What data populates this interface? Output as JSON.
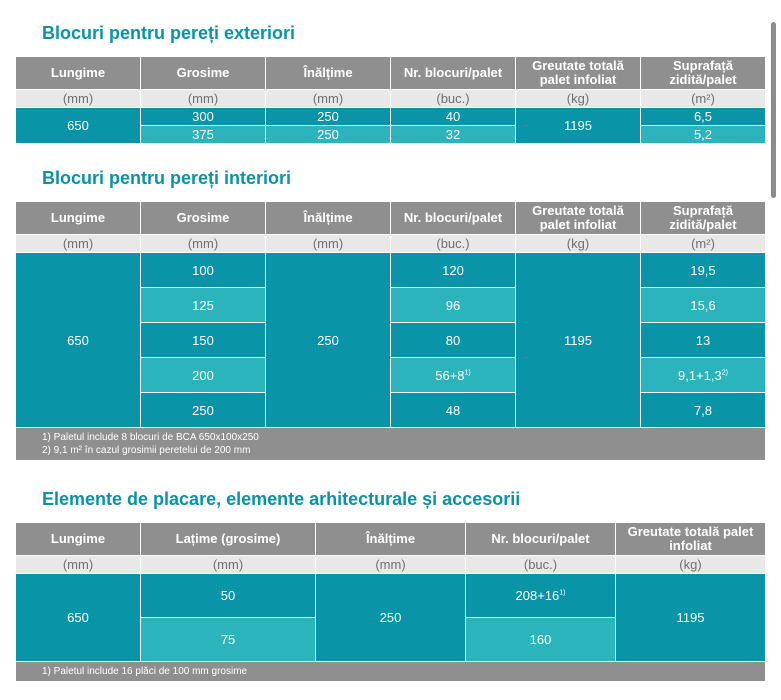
{
  "sections": [
    {
      "title": "Blocuri pentru pereți exteriori",
      "columns": [
        {
          "header": "Lungime",
          "unit": "(mm)",
          "values": [
            "650"
          ]
        },
        {
          "header": "Grosime",
          "unit": "(mm)",
          "values": [
            "300",
            "375"
          ]
        },
        {
          "header": "Înălțime",
          "unit": "(mm)",
          "values": [
            "250",
            "250"
          ]
        },
        {
          "header": "Nr. blocuri/palet",
          "unit": "(buc.)",
          "values": [
            "40",
            "32"
          ]
        },
        {
          "header": "Greutate totală palet infoliat",
          "unit": "(kg)",
          "values": [
            "1195"
          ]
        },
        {
          "header": "Suprafață zidită/palet",
          "unit": "(m²)",
          "values": [
            "6,5",
            "5,2"
          ]
        }
      ]
    },
    {
      "title": "Blocuri pentru pereți interiori",
      "columns": [
        {
          "header": "Lungime",
          "unit": "(mm)",
          "values": [
            "650"
          ]
        },
        {
          "header": "Grosime",
          "unit": "(mm)",
          "values": [
            "100",
            "125",
            "150",
            "200",
            "250"
          ]
        },
        {
          "header": "Înălțime",
          "unit": "(mm)",
          "values": [
            "250"
          ]
        },
        {
          "header": "Nr. blocuri/palet",
          "unit": "(buc.)",
          "values": [
            "120",
            "96",
            "80",
            {
              "text": "56+8",
              "sup": "1)"
            },
            "48"
          ]
        },
        {
          "header": "Greutate totală palet infoliat",
          "unit": "(kg)",
          "values": [
            "1195"
          ]
        },
        {
          "header": "Suprafață zidită/palet",
          "unit": "(m²)",
          "values": [
            "19,5",
            "15,6",
            "13",
            {
              "text": "9,1+1,3",
              "sup": "2)"
            },
            "7,8"
          ]
        }
      ],
      "footnotes": [
        "1) Paletul include 8 blocuri de BCA 650x100x250",
        "2) 9,1 m² în cazul grosimii peretelui de 200 mm"
      ]
    },
    {
      "title": "Elemente de placare, elemente arhitecturale și accesorii",
      "columns": [
        {
          "header": "Lungime",
          "unit": "(mm)",
          "values": [
            "650"
          ]
        },
        {
          "header": "Lațime (grosime)",
          "unit": "(mm)",
          "values": [
            "50",
            "75"
          ]
        },
        {
          "header": "Înălțime",
          "unit": "(mm)",
          "values": [
            "250"
          ]
        },
        {
          "header": "Nr. blocuri/palet",
          "unit": "(buc.)",
          "values": [
            {
              "text": "208+16",
              "sup": "1)"
            },
            "160"
          ]
        },
        {
          "header": "Greutate totală palet infoliat",
          "unit": "(kg)",
          "values": [
            "1195"
          ]
        }
      ],
      "footnotes": [
        "1) Paletul include 16 plăci de 100 mm grosime"
      ]
    }
  ]
}
